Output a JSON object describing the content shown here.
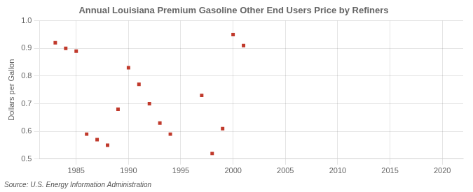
{
  "chart_data": {
    "type": "scatter",
    "title": "Annual Louisiana Premium Gasoline Other End Users Price by Refiners",
    "y_label": "Dollars per Gallon",
    "source": "Source: U.S. Energy Information Administration",
    "x": [
      1983,
      1984,
      1985,
      1986,
      1987,
      1988,
      1989,
      1990,
      1991,
      1992,
      1993,
      1994,
      1997,
      1998,
      1999,
      2000,
      2001
    ],
    "values": [
      0.92,
      0.9,
      0.89,
      0.59,
      0.57,
      0.55,
      0.68,
      0.83,
      0.77,
      0.7,
      0.63,
      0.59,
      0.73,
      0.52,
      0.61,
      0.95,
      0.91
    ],
    "color": "#c0392b",
    "marker": "square",
    "xlim": [
      1981.5,
      2022
    ],
    "ylim": [
      0.5,
      1.0
    ],
    "xticks": [
      1985,
      1990,
      1995,
      2000,
      2005,
      2010,
      2015,
      2020
    ],
    "yticks": [
      0.5,
      0.6,
      0.7,
      0.8,
      0.9,
      {
        "value": 1.0,
        "label": "1.0"
      }
    ],
    "grid": true,
    "legend": false
  }
}
